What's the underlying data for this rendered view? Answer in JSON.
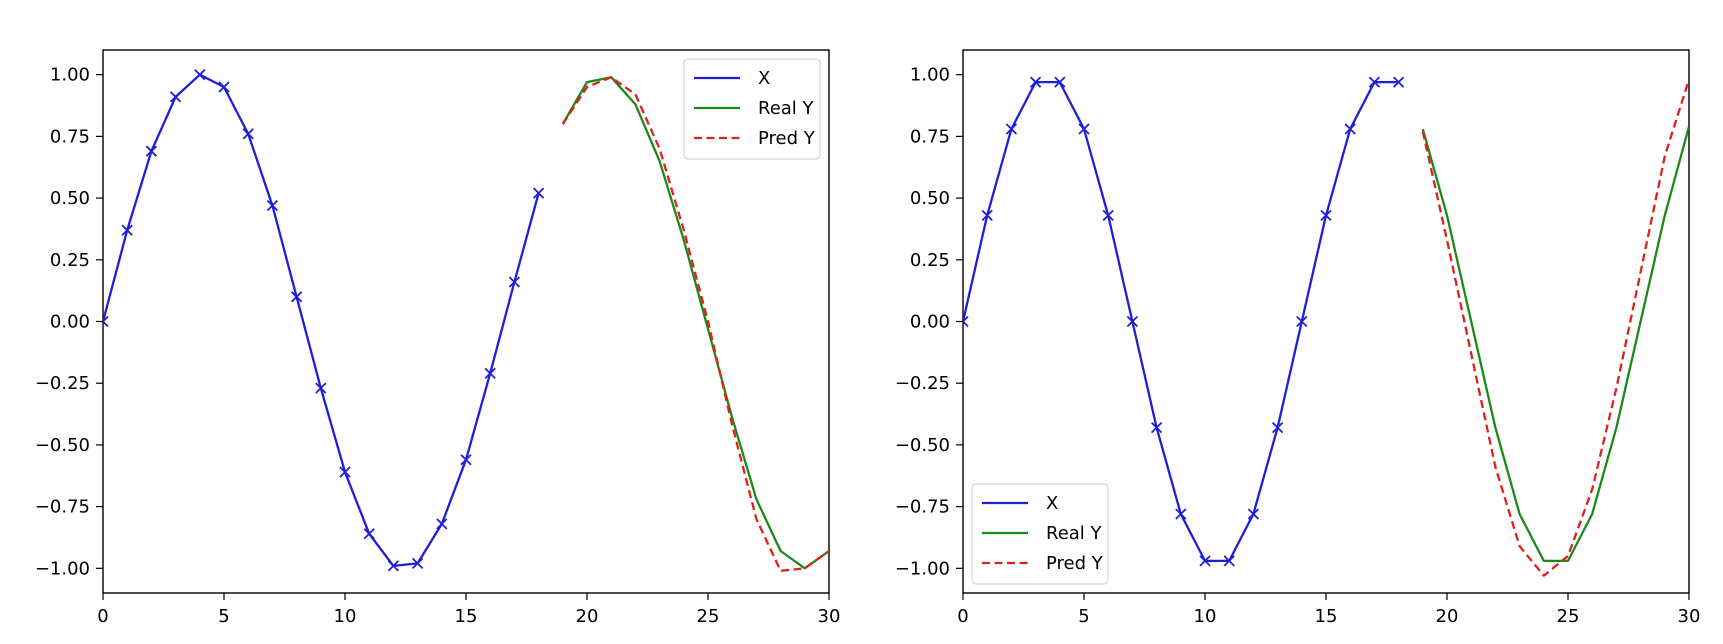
{
  "chart_data": [
    {
      "type": "line",
      "title": "",
      "xlabel": "",
      "ylabel": "",
      "xlim": [
        0,
        30
      ],
      "ylim": [
        -1.1,
        1.1
      ],
      "xticks": [
        "0",
        "5",
        "10",
        "15",
        "20",
        "25",
        "30"
      ],
      "yticks": [
        "1.00",
        "0.75",
        "0.50",
        "0.25",
        "0.00",
        "−0.25",
        "−0.50",
        "−0.75",
        "−1.00"
      ],
      "grid": false,
      "legend_position": "top-right",
      "series": [
        {
          "name": "X",
          "color": "#1f1fd6",
          "style": "solid",
          "marker": "x",
          "x": [
            0,
            1,
            2,
            3,
            4,
            5,
            6,
            7,
            8,
            9,
            10,
            11,
            12,
            13,
            14,
            15,
            16,
            17,
            18
          ],
          "y": [
            0.0,
            0.37,
            0.69,
            0.91,
            1.0,
            0.95,
            0.76,
            0.47,
            0.1,
            -0.27,
            -0.61,
            -0.86,
            -0.99,
            -0.98,
            -0.82,
            -0.56,
            -0.21,
            0.16,
            0.52
          ]
        },
        {
          "name": "Real Y",
          "color": "#1b8a1b",
          "style": "solid",
          "marker": "none",
          "x": [
            19,
            20,
            21,
            22,
            23,
            24,
            25,
            26,
            27,
            28,
            29,
            30
          ],
          "y": [
            0.8,
            0.97,
            0.99,
            0.88,
            0.65,
            0.33,
            -0.03,
            -0.39,
            -0.72,
            -0.93,
            -1.0,
            -0.93
          ]
        },
        {
          "name": "Pred Y",
          "color": "#e0201b",
          "style": "dashed",
          "marker": "none",
          "x": [
            19,
            20,
            21,
            22,
            23,
            24,
            25,
            26,
            27,
            28,
            29,
            30
          ],
          "y": [
            0.8,
            0.95,
            0.99,
            0.92,
            0.7,
            0.37,
            0.0,
            -0.42,
            -0.8,
            -1.01,
            -1.0,
            -0.93
          ]
        }
      ]
    },
    {
      "type": "line",
      "title": "",
      "xlabel": "",
      "ylabel": "",
      "xlim": [
        0,
        30
      ],
      "ylim": [
        -1.1,
        1.1
      ],
      "xticks": [
        "0",
        "5",
        "10",
        "15",
        "20",
        "25",
        "30"
      ],
      "yticks": [
        "1.00",
        "0.75",
        "0.50",
        "0.25",
        "0.00",
        "−0.25",
        "−0.50",
        "−0.75",
        "−1.00"
      ],
      "grid": false,
      "legend_position": "bottom-left",
      "series": [
        {
          "name": "X",
          "color": "#1f1fd6",
          "style": "solid",
          "marker": "x",
          "x": [
            0,
            1,
            2,
            3,
            4,
            5,
            6,
            7,
            8,
            9,
            10,
            11,
            12,
            13,
            14,
            15,
            16,
            17,
            18
          ],
          "y": [
            0.0,
            0.43,
            0.78,
            0.97,
            0.97,
            0.78,
            0.43,
            0.0,
            -0.43,
            -0.78,
            -0.97,
            -0.97,
            -0.78,
            -0.43,
            0.0,
            0.43,
            0.78,
            0.97,
            0.97
          ]
        },
        {
          "name": "Real Y",
          "color": "#1b8a1b",
          "style": "solid",
          "marker": "none",
          "x": [
            19,
            20,
            21,
            22,
            23,
            24,
            25,
            26,
            27,
            28,
            29,
            30
          ],
          "y": [
            0.78,
            0.43,
            0.0,
            -0.43,
            -0.78,
            -0.97,
            -0.97,
            -0.78,
            -0.43,
            0.0,
            0.43,
            0.79
          ]
        },
        {
          "name": "Pred Y",
          "color": "#e0201b",
          "style": "dashed",
          "marker": "none",
          "x": [
            19,
            20,
            21,
            22,
            23,
            24,
            25,
            26,
            27,
            28,
            29,
            30
          ],
          "y": [
            0.77,
            0.33,
            -0.13,
            -0.59,
            -0.91,
            -1.03,
            -0.95,
            -0.68,
            -0.27,
            0.2,
            0.67,
            0.98
          ]
        }
      ]
    }
  ]
}
